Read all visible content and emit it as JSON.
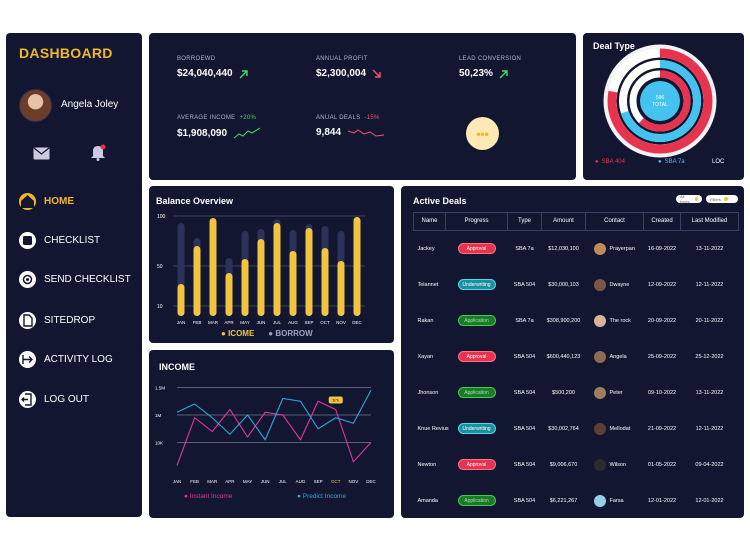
{
  "sidebar": {
    "brand": "DASHBOARD",
    "user_name": "Angela Joley",
    "nav": [
      {
        "label": "HOME",
        "icon": "home-icon",
        "active": true
      },
      {
        "label": "CHECKLIST",
        "icon": "checklist-icon",
        "active": false
      },
      {
        "label": "SEND CHECKLIST",
        "icon": "send-icon",
        "active": false
      },
      {
        "label": "SITEDROP",
        "icon": "document-icon",
        "active": false
      },
      {
        "label": "ACTIVITY LOG",
        "icon": "activity-icon",
        "active": false
      },
      {
        "label": "LOG OUT",
        "icon": "logout-icon",
        "active": false
      }
    ]
  },
  "stats": {
    "borrowed": {
      "label": "BORROEWD",
      "value": "$24,040,440",
      "trend": "up"
    },
    "annual_profit": {
      "label": "ANNUAL PROFIT",
      "value": "$2,300,004",
      "trend": "down"
    },
    "lead_conversion": {
      "label": "LEAD CONVERSION",
      "value": "50,23%",
      "trend": "up"
    },
    "average_income": {
      "label": "AVERAGE INCOME",
      "value": "$1,908,090",
      "delta": "+20%"
    },
    "annual_deals": {
      "label": "ANUAL DEALS",
      "value": "9,844",
      "delta": "-15%"
    },
    "more_label": "•••"
  },
  "deal_type": {
    "title": "Deal Type",
    "center_value": "596",
    "center_label": "TOTAL",
    "legend": [
      {
        "label": "SBA 404",
        "color": "#e8334f"
      },
      {
        "label": "SBA 7a",
        "color": "#45c3f0"
      },
      {
        "label": "LOC",
        "color": "#ffffff"
      }
    ],
    "ring_fractions": [
      0.78,
      0.7,
      0.62
    ]
  },
  "balance": {
    "title": "Balance Overview",
    "legend_income": "ICOME",
    "legend_borrow": "BORROW"
  },
  "income": {
    "title": "INCOME",
    "legend_instant": "Instant Income",
    "legend_predict": "Predict Income",
    "tooltip": "$7k"
  },
  "chart_data": [
    {
      "type": "bar",
      "title": "Balance Overview",
      "categories": [
        "JAN",
        "FEB",
        "MAR",
        "APR",
        "MAY",
        "JUN",
        "JUL",
        "AUG",
        "SEP",
        "OCT",
        "NOV",
        "DEC"
      ],
      "yticks": [
        "100",
        "50",
        "10"
      ],
      "series": [
        {
          "name": "ICOME",
          "color": "#f2c541",
          "values": [
            32,
            70,
            98,
            43,
            57,
            77,
            93,
            65,
            88,
            68,
            55,
            99
          ]
        },
        {
          "name": "BORROW",
          "color": "#2d3358",
          "values": [
            93,
            78,
            55,
            58,
            85,
            87,
            97,
            86,
            92,
            90,
            85,
            60
          ]
        }
      ],
      "ylim": [
        0,
        100
      ]
    },
    {
      "type": "line",
      "title": "INCOME",
      "categories": [
        "JAN",
        "FEB",
        "MAR",
        "APR",
        "MAY",
        "JUN",
        "JUL",
        "AUG",
        "SEP",
        "OCT",
        "NOV",
        "DEC"
      ],
      "yticks": [
        "1.5M",
        "1M",
        "10K"
      ],
      "series": [
        {
          "name": "Instant Income",
          "color": "#e0369d",
          "values": [
            0.08,
            0.95,
            0.7,
            1.1,
            0.6,
            1.05,
            1.0,
            0.55,
            1.25,
            1.1,
            0.15,
            0.5
          ]
        },
        {
          "name": "Predict Income",
          "color": "#2fa8d8",
          "values": [
            1.05,
            1.2,
            0.95,
            0.65,
            1.0,
            0.55,
            1.3,
            1.25,
            0.75,
            0.95,
            0.85,
            1.45
          ]
        }
      ],
      "ylim": [
        0,
        1.6
      ]
    }
  ],
  "deals": {
    "title": "Active Deals",
    "filters": [
      "All types",
      "Filters"
    ],
    "columns": [
      "Name",
      "Progress",
      "Type",
      "Amount",
      "Contact",
      "Created",
      "Last Modified"
    ],
    "rows": [
      {
        "name": "Jackey",
        "progress": "Approval",
        "kind": "approval",
        "type": "SBA 7a",
        "amount": "$12,030,100",
        "contact": "Prayerpan",
        "created": "16-09-2022",
        "modified": "13-11-2022"
      },
      {
        "name": "Telannet",
        "progress": "Underwriting",
        "kind": "underwriting",
        "type": "SBA 504",
        "amount": "$30,000,103",
        "contact": "Dwayne",
        "created": "12-09-2022",
        "modified": "12-11-2022"
      },
      {
        "name": "Rakan",
        "progress": "Application",
        "kind": "application",
        "type": "SBA 7a",
        "amount": "$308,900,200",
        "contact": "The rock",
        "created": "20-09-2022",
        "modified": "20-11-2022"
      },
      {
        "name": "Xayan",
        "progress": "Approval",
        "kind": "approval",
        "type": "SBA 504",
        "amount": "$600,440,123",
        "contact": "Angela",
        "created": "25-09-2022",
        "modified": "25-12-2022"
      },
      {
        "name": "Jhonson",
        "progress": "Application",
        "kind": "application",
        "type": "SBA 504",
        "amount": "$500,200",
        "contact": "Peter",
        "created": "09-10-2022",
        "modified": "13-11-2022"
      },
      {
        "name": "Knue Revius",
        "progress": "Underwriting",
        "kind": "underwriting",
        "type": "SBA 504",
        "amount": "$30,002,764",
        "contact": "Mellodat",
        "created": "21-09-2022",
        "modified": "12-11-2022"
      },
      {
        "name": "Newton",
        "progress": "Approval",
        "kind": "approval",
        "type": "SBA 504",
        "amount": "$9,006,670",
        "contact": "Wilson",
        "created": "01-05-2022",
        "modified": "09-04-2022"
      },
      {
        "name": "Amanda",
        "progress": "Application",
        "kind": "application",
        "type": "SBA 504",
        "amount": "$6,221,267",
        "contact": "Farsa",
        "created": "12-01-2022",
        "modified": "12-01-2022"
      }
    ]
  }
}
